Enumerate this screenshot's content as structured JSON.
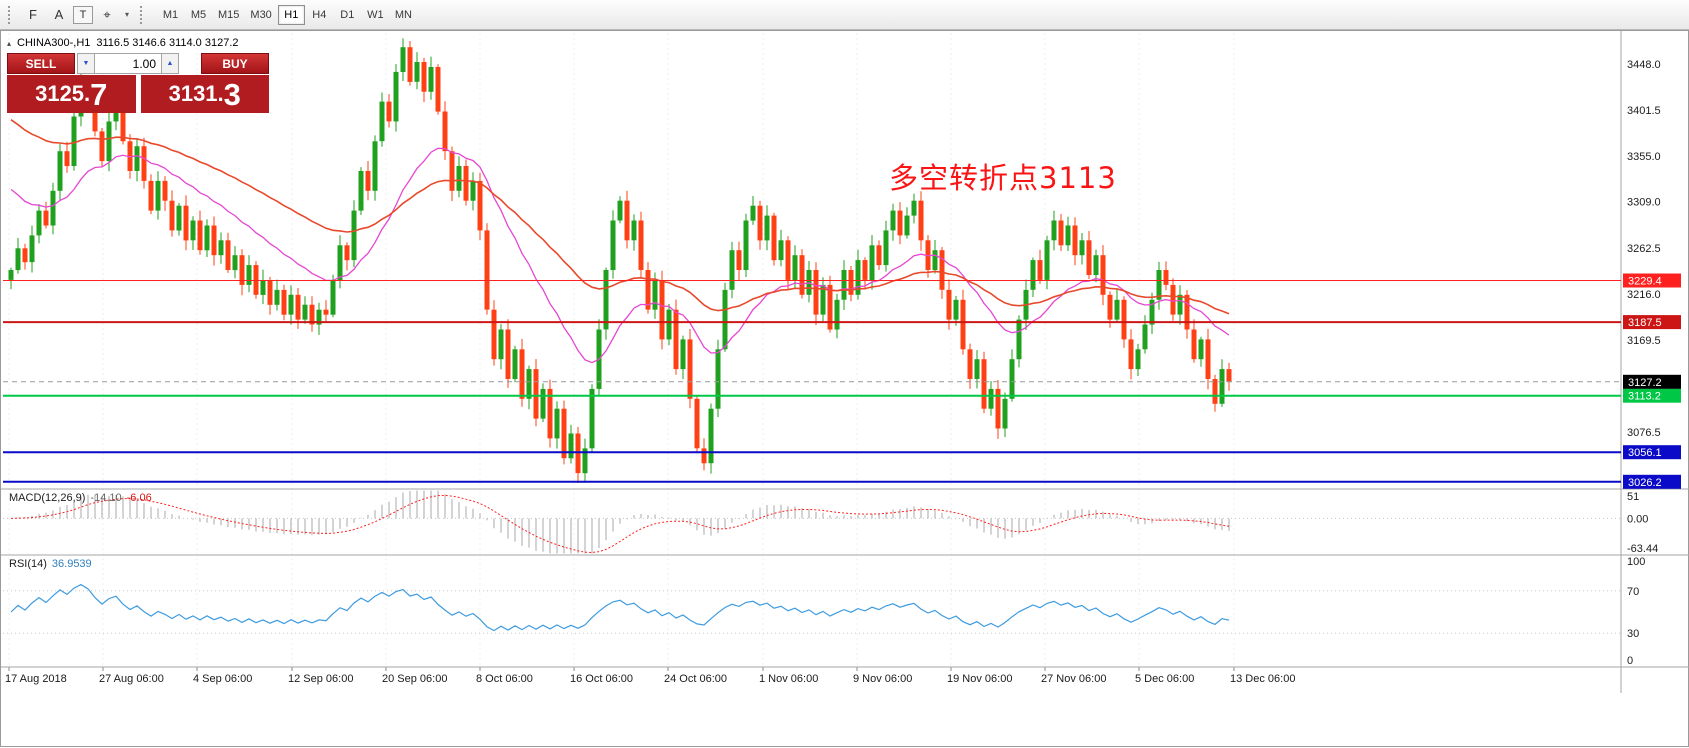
{
  "toolbar": {
    "icons": [
      {
        "name": "pattern-f-icon",
        "glyph": "F"
      },
      {
        "name": "text-tool-icon",
        "glyph": "A"
      },
      {
        "name": "label-tool-icon",
        "glyph": "T"
      },
      {
        "name": "crosshair-tool-icon",
        "glyph": "⌖"
      }
    ],
    "caret_glyph": "▾",
    "timeframes": [
      "M1",
      "M5",
      "M15",
      "M30",
      "H1",
      "H4",
      "D1",
      "W1",
      "MN"
    ],
    "active_timeframe": "H1"
  },
  "chart_header": {
    "collapse_glyph": "▴",
    "symbol_title": "CHINA300-,H1",
    "ohlc": "3116.5 3146.6 3114.0 3127.2"
  },
  "trade_panel": {
    "sell_label": "SELL",
    "buy_label": "BUY",
    "volume": "1.00",
    "dropdown_glyph": "▼",
    "spinner_glyph": "▲",
    "sell_price": {
      "main": "3125.",
      "big": "7"
    },
    "buy_price": {
      "main": "3131.",
      "big": "3"
    },
    "panel_color": "#b01c20"
  },
  "annotation": {
    "text": "多空转折点3113",
    "color": "#fa1414"
  },
  "price_axis": {
    "ticks": [
      "3448.0",
      "3401.5",
      "3355.0",
      "3309.0",
      "3262.5",
      "3216.0",
      "3169.5",
      "3076.5"
    ],
    "current_price": {
      "value": "3127.2",
      "box_color": "#000000"
    },
    "levels": [
      {
        "value": 3229.4,
        "label": "3229.4",
        "color": "#ff2020",
        "width": 1
      },
      {
        "value": 3187.5,
        "label": "3187.5",
        "color": "#cc1616",
        "width": 2
      },
      {
        "value": 3113.2,
        "label": "3113.2",
        "color": "#00c846",
        "width": 2
      },
      {
        "value": 3056.1,
        "label": "3056.1",
        "color": "#0a0ac8",
        "width": 2
      },
      {
        "value": 3026.2,
        "label": "3026.2",
        "color": "#0a0ac8",
        "width": 2
      }
    ]
  },
  "macd_panel": {
    "name": "MACD(12,26,9)",
    "value_main": "-14.10",
    "value_signal": "-6.06",
    "axis": [
      "51",
      "0.00",
      "-63.44"
    ],
    "range": [
      51,
      -63.44
    ]
  },
  "rsi_panel": {
    "name": "RSI(14)",
    "value": "36.9539",
    "axis": [
      "100",
      "70",
      "30",
      "0"
    ],
    "guide_levels": [
      70,
      30
    ],
    "range": [
      100,
      0
    ]
  },
  "chart_data": {
    "type": "candlestick",
    "symbol": "CHINA300-",
    "timeframe": "H1",
    "last_ohlc": {
      "open": 3116.5,
      "high": 3146.6,
      "low": 3114.0,
      "close": 3127.2
    },
    "bid": 3125.7,
    "ask": 3131.3,
    "y_ticks": [
      3448.0,
      3401.5,
      3355.0,
      3309.0,
      3262.5,
      3216.0,
      3169.5,
      3076.5
    ],
    "x_labels": [
      "17 Aug 2018",
      "27 Aug 06:00",
      "4 Sep 06:00",
      "12 Sep 06:00",
      "20 Sep 06:00",
      "8 Oct 06:00",
      "16 Oct 06:00",
      "24 Oct 06:00",
      "1 Nov 06:00",
      "9 Nov 06:00",
      "19 Nov 06:00",
      "27 Nov 06:00",
      "5 Dec 06:00",
      "13 Dec 06:00"
    ],
    "horizontal_levels": [
      3229.4,
      3187.5,
      3113.2,
      3056.1,
      3026.2
    ],
    "indicators": {
      "ma_fast_period": 20,
      "ma_slow_period": 50,
      "macd_params": [
        12,
        26,
        9
      ],
      "rsi_period": 14
    },
    "colors": {
      "up": "#1fa11f",
      "down": "#ff4014",
      "ma_fast": "#e646d2",
      "ma_slow": "#e8492b",
      "macd_hist": "#a8a8a8",
      "macd_signal": "#ff2020",
      "rsi_line": "#3d9be0"
    },
    "closes": [
      3240,
      3262,
      3248,
      3275,
      3300,
      3285,
      3320,
      3360,
      3345,
      3395,
      3430,
      3415,
      3380,
      3350,
      3390,
      3410,
      3370,
      3340,
      3365,
      3330,
      3300,
      3330,
      3310,
      3280,
      3305,
      3270,
      3290,
      3260,
      3285,
      3255,
      3270,
      3240,
      3255,
      3225,
      3245,
      3215,
      3230,
      3205,
      3220,
      3195,
      3215,
      3190,
      3205,
      3185,
      3200,
      3195,
      3230,
      3265,
      3250,
      3300,
      3340,
      3320,
      3370,
      3410,
      3390,
      3440,
      3465,
      3430,
      3450,
      3420,
      3445,
      3400,
      3360,
      3320,
      3345,
      3310,
      3330,
      3280,
      3200,
      3150,
      3180,
      3130,
      3160,
      3110,
      3140,
      3090,
      3120,
      3070,
      3100,
      3050,
      3075,
      3035,
      3060,
      3120,
      3180,
      3240,
      3290,
      3310,
      3270,
      3290,
      3240,
      3200,
      3230,
      3170,
      3200,
      3140,
      3170,
      3110,
      3060,
      3045,
      3100,
      3160,
      3220,
      3260,
      3240,
      3290,
      3305,
      3270,
      3295,
      3250,
      3270,
      3230,
      3255,
      3215,
      3240,
      3195,
      3225,
      3180,
      3210,
      3240,
      3215,
      3250,
      3230,
      3265,
      3245,
      3280,
      3300,
      3275,
      3295,
      3310,
      3270,
      3240,
      3260,
      3220,
      3190,
      3210,
      3160,
      3130,
      3150,
      3100,
      3120,
      3080,
      3110,
      3150,
      3190,
      3220,
      3250,
      3230,
      3270,
      3290,
      3265,
      3285,
      3255,
      3270,
      3235,
      3255,
      3215,
      3190,
      3210,
      3170,
      3140,
      3160,
      3185,
      3210,
      3240,
      3225,
      3195,
      3215,
      3180,
      3150,
      3170,
      3130,
      3105,
      3140,
      3127
    ]
  }
}
